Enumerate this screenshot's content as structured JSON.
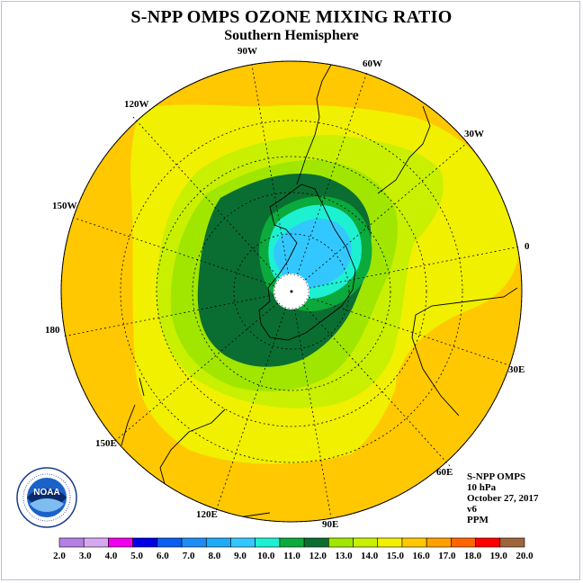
{
  "title": "S-NPP OMPS OZONE MIXING RATIO",
  "subtitle": "Southern Hemisphere",
  "longitude_labels": [
    "90W",
    "60W",
    "30W",
    "0",
    "30E",
    "60E",
    "90E",
    "120E",
    "150E",
    "180",
    "150W",
    "120W"
  ],
  "info": [
    "S-NPP OMPS",
    "10 hPa",
    "October 27, 2017",
    "v6",
    "PPM"
  ],
  "logo_text": "NOAA",
  "colorbar": {
    "labels": [
      "2.0",
      "3.0",
      "4.0",
      "5.0",
      "6.0",
      "7.0",
      "8.0",
      "9.0",
      "10.0",
      "11.0",
      "12.0",
      "13.0",
      "14.0",
      "15.0",
      "16.0",
      "17.0",
      "18.0",
      "19.0",
      "20.0"
    ],
    "colors": [
      "#b57fe6",
      "#d6a8f0",
      "#ee00ee",
      "#0000e6",
      "#0a5ef0",
      "#1e8cf5",
      "#1eaaf5",
      "#32c8ff",
      "#1ef0d2",
      "#0aaa3c",
      "#0a6e32",
      "#a0e600",
      "#c8f000",
      "#f0f000",
      "#ffc800",
      "#ffa000",
      "#ff6400",
      "#ff0000",
      "#a0643c"
    ]
  }
}
